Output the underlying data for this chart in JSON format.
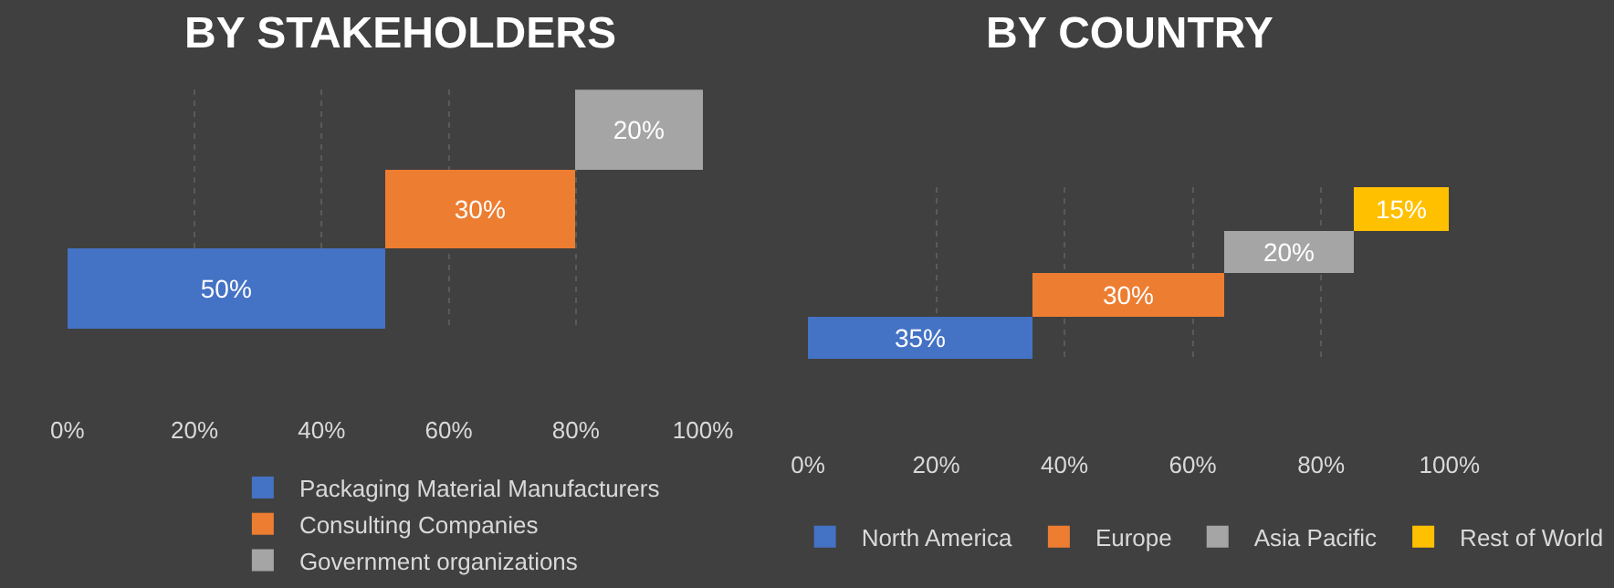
{
  "chart_data": [
    {
      "type": "bar",
      "title": "BY STAKEHOLDERS",
      "orientation": "horizontal",
      "categories": [
        null,
        null,
        null
      ],
      "series": [
        {
          "name": "Packaging Material Manufacturers",
          "color": "#4472c4",
          "values": [
            null,
            null,
            50
          ],
          "value_labels": [
            null,
            null,
            "50%"
          ]
        },
        {
          "name": "Consulting Companies",
          "color": "#ed7d31",
          "values": [
            null,
            30,
            null
          ],
          "base": [
            null,
            50,
            null
          ],
          "value_labels": [
            null,
            "30%",
            null
          ]
        },
        {
          "name": "Government organizations",
          "color": "#a5a5a5",
          "values": [
            20,
            null,
            null
          ],
          "base": [
            80,
            null,
            null
          ],
          "value_labels": [
            "20%",
            null,
            null
          ]
        }
      ],
      "xlim": [
        0,
        100
      ],
      "xticks": [
        {
          "value": 0,
          "label": "0%"
        },
        {
          "value": 20,
          "label": "20%"
        },
        {
          "value": 40,
          "label": "40%"
        },
        {
          "value": 60,
          "label": "60%"
        },
        {
          "value": 80,
          "label": "80%"
        },
        {
          "value": 100,
          "label": "100%"
        }
      ],
      "grid": "x",
      "legend": "bottom",
      "tick_labels": "x"
    },
    {
      "type": "bar",
      "title": "BY COUNTRY",
      "orientation": "horizontal",
      "categories": [
        null,
        null,
        null,
        null
      ],
      "series": [
        {
          "name": "North America",
          "color": "#4472c4",
          "values": [
            null,
            null,
            null,
            35
          ],
          "value_labels": [
            null,
            null,
            null,
            "35%"
          ]
        },
        {
          "name": "Europe",
          "color": "#ed7d31",
          "values": [
            null,
            null,
            30,
            null
          ],
          "base": [
            null,
            null,
            35,
            null
          ],
          "value_labels": [
            null,
            null,
            "30%",
            null
          ]
        },
        {
          "name": "Asia Pacific",
          "color": "#a5a5a5",
          "values": [
            null,
            20,
            null,
            null
          ],
          "base": [
            null,
            65,
            null,
            null
          ],
          "value_labels": [
            null,
            "20%",
            null,
            null
          ]
        },
        {
          "name": "Rest of World",
          "color": "#ffc000",
          "values": [
            15,
            null,
            null,
            null
          ],
          "base": [
            85,
            null,
            null,
            null
          ],
          "value_labels": [
            "15%",
            null,
            null,
            null
          ]
        }
      ],
      "xlim": [
        0,
        100
      ],
      "xticks": [
        {
          "value": 0,
          "label": "0%"
        },
        {
          "value": 20,
          "label": "20%"
        },
        {
          "value": 40,
          "label": "40%"
        },
        {
          "value": 60,
          "label": "60%"
        },
        {
          "value": 80,
          "label": "80%"
        },
        {
          "value": 100,
          "label": "100%"
        }
      ],
      "grid": "x",
      "legend": "bottom",
      "tick_labels": "x"
    }
  ]
}
